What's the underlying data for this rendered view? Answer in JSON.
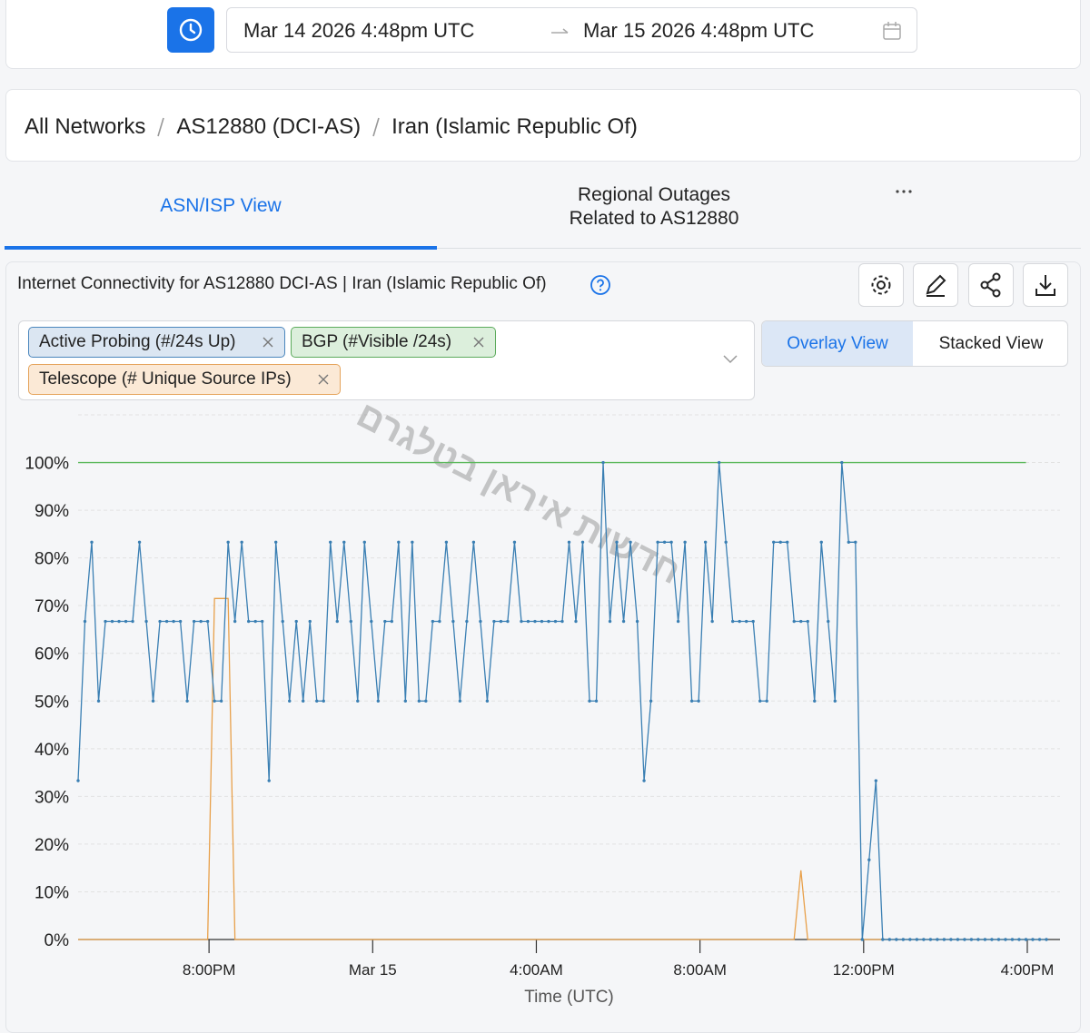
{
  "date_range": {
    "start": "Mar 14 2026 4:48pm UTC",
    "end": "Mar 15 2026 4:48pm UTC"
  },
  "breadcrumb": [
    "All Networks",
    "AS12880 (DCI-AS)",
    "Iran (Islamic Republic Of)"
  ],
  "tabs": [
    "ASN/ISP View",
    "Regional Outages Related to AS12880"
  ],
  "chart_title": "Internet Connectivity for AS12880 DCI-AS | Iran (Islamic Republic Of)",
  "view_toggle": [
    "Overlay View",
    "Stacked View"
  ],
  "watermark": "חדשות איראן בטלגרם",
  "chart_data": {
    "type": "line",
    "xlabel": "Time (UTC)",
    "grid": true,
    "xlim": [
      1008,
      2448
    ],
    "xticks": [
      {
        "value": 1200,
        "label": "8:00PM"
      },
      {
        "value": 1440,
        "label": "Mar 15"
      },
      {
        "value": 1680,
        "label": "4:00AM"
      },
      {
        "value": 1920,
        "label": "8:00AM"
      },
      {
        "value": 2160,
        "label": "12:00PM"
      },
      {
        "value": 2400,
        "label": "4:00PM"
      }
    ],
    "ylim": [
      0,
      110
    ],
    "yticks": [
      {
        "value": 0,
        "label": "0%"
      },
      {
        "value": 10,
        "label": "10%"
      },
      {
        "value": 20,
        "label": "20%"
      },
      {
        "value": 30,
        "label": "30%"
      },
      {
        "value": 40,
        "label": "40%"
      },
      {
        "value": 50,
        "label": "50%"
      },
      {
        "value": 60,
        "label": "60%"
      },
      {
        "value": 70,
        "label": "70%"
      },
      {
        "value": 80,
        "label": "80%"
      },
      {
        "value": 90,
        "label": "90%"
      },
      {
        "value": 100,
        "label": "100%"
      }
    ],
    "x": [
      1008,
      1018,
      1028,
      1038,
      1048,
      1058,
      1068,
      1078,
      1088,
      1098,
      1108,
      1118,
      1128,
      1138,
      1148,
      1158,
      1168,
      1178,
      1188,
      1198,
      1208,
      1218,
      1228,
      1238,
      1248,
      1258,
      1268,
      1278,
      1288,
      1298,
      1308,
      1318,
      1328,
      1338,
      1348,
      1358,
      1368,
      1378,
      1388,
      1398,
      1408,
      1418,
      1428,
      1438,
      1448,
      1458,
      1468,
      1478,
      1488,
      1498,
      1508,
      1518,
      1528,
      1538,
      1548,
      1558,
      1568,
      1578,
      1588,
      1598,
      1608,
      1618,
      1628,
      1638,
      1648,
      1658,
      1668,
      1678,
      1688,
      1698,
      1708,
      1718,
      1728,
      1738,
      1748,
      1758,
      1768,
      1778,
      1788,
      1798,
      1808,
      1818,
      1828,
      1838,
      1848,
      1858,
      1868,
      1878,
      1888,
      1898,
      1908,
      1918,
      1928,
      1938,
      1948,
      1958,
      1968,
      1978,
      1988,
      1998,
      2008,
      2018,
      2028,
      2038,
      2048,
      2058,
      2068,
      2078,
      2088,
      2098,
      2108,
      2118,
      2128,
      2138,
      2148,
      2158,
      2168,
      2178,
      2188,
      2198,
      2208,
      2218,
      2228,
      2238,
      2248,
      2258,
      2268,
      2278,
      2288,
      2298,
      2308,
      2318,
      2328,
      2338,
      2348,
      2358,
      2368,
      2378,
      2388,
      2398,
      2408,
      2418,
      2428
    ],
    "series": [
      {
        "name": "Active Probing (#/24s Up)",
        "color": "#3a7fb3",
        "values": [
          33.3,
          66.7,
          83.3,
          50,
          66.7,
          66.7,
          66.7,
          66.7,
          66.7,
          83.3,
          66.7,
          50,
          66.7,
          66.7,
          66.7,
          66.7,
          50,
          66.7,
          66.7,
          66.7,
          50,
          50,
          83.3,
          66.7,
          83.3,
          66.7,
          66.7,
          66.7,
          33.3,
          83.3,
          66.7,
          50,
          66.7,
          50,
          66.7,
          50,
          50,
          83.3,
          66.7,
          83.3,
          66.7,
          50,
          83.3,
          66.7,
          50,
          66.7,
          66.7,
          83.3,
          50,
          83.3,
          50,
          50,
          66.7,
          66.7,
          83.3,
          66.7,
          50,
          66.7,
          83.3,
          66.7,
          50,
          66.7,
          66.7,
          66.7,
          83.3,
          66.7,
          66.7,
          66.7,
          66.7,
          66.7,
          66.7,
          66.7,
          83.3,
          66.7,
          83.3,
          50,
          50,
          100,
          66.7,
          83.3,
          66.7,
          83.3,
          66.7,
          33.3,
          50,
          83.3,
          83.3,
          83.3,
          66.7,
          83.3,
          50,
          50,
          83.3,
          66.7,
          100,
          83.3,
          66.7,
          66.7,
          66.7,
          66.7,
          50,
          50,
          83.3,
          83.3,
          83.3,
          66.7,
          66.7,
          66.7,
          50,
          83.3,
          66.7,
          50,
          100,
          83.3,
          83.3,
          0,
          16.7,
          33.3,
          0,
          0,
          0,
          0,
          0,
          0,
          0,
          0,
          0,
          0,
          0,
          0,
          0,
          0,
          0,
          0,
          0,
          0,
          0,
          0,
          0,
          0,
          0,
          0,
          0
        ]
      },
      {
        "name": "BGP (#Visible /24s)",
        "color": "#5cb85c",
        "values": [
          100,
          100,
          100,
          100,
          100,
          100,
          100,
          100,
          100,
          100,
          100,
          100,
          100,
          100,
          100,
          100,
          100,
          100,
          100,
          100,
          100,
          100,
          100,
          100,
          100,
          100,
          100,
          100,
          100,
          100,
          100,
          100,
          100,
          100,
          100,
          100,
          100,
          100,
          100,
          100,
          100,
          100,
          100,
          100,
          100,
          100,
          100,
          100,
          100,
          100,
          100,
          100,
          100,
          100,
          100,
          100,
          100,
          100,
          100,
          100,
          100,
          100,
          100,
          100,
          100,
          100,
          100,
          100,
          100,
          100,
          100,
          100,
          100,
          100,
          100,
          100,
          100,
          100,
          100,
          100,
          100,
          100,
          100,
          100,
          100,
          100,
          100,
          100,
          100,
          100,
          100,
          100,
          100,
          100,
          100,
          100,
          100,
          100,
          100,
          100,
          100,
          100,
          100,
          100,
          100,
          100,
          100,
          100,
          100,
          100,
          100,
          100,
          100,
          100,
          100,
          100,
          100,
          100,
          100,
          100,
          100,
          100,
          100,
          100,
          100,
          100,
          100,
          100,
          100,
          100,
          100,
          100,
          100,
          100,
          100,
          100,
          100,
          100,
          100,
          100,
          null,
          null,
          null
        ]
      },
      {
        "name": "Telescope (# Unique Source IPs)",
        "color": "#e8a04a",
        "values": [
          0,
          0,
          0,
          0,
          0,
          0,
          0,
          0,
          0,
          0,
          0,
          0,
          0,
          0,
          0,
          0,
          0,
          0,
          0,
          0,
          71.5,
          71.5,
          71.5,
          0,
          0,
          0,
          0,
          0,
          0,
          0,
          0,
          0,
          0,
          0,
          0,
          0,
          0,
          0,
          0,
          0,
          0,
          0,
          0,
          0,
          0,
          0,
          0,
          0,
          0,
          0,
          0,
          0,
          0,
          0,
          0,
          0,
          0,
          0,
          0,
          0,
          0,
          0,
          0,
          0,
          0,
          0,
          0,
          0,
          0,
          0,
          0,
          0,
          0,
          0,
          0,
          0,
          0,
          0,
          0,
          0,
          0,
          0,
          0,
          0,
          0,
          0,
          0,
          0,
          0,
          0,
          0,
          0,
          0,
          0,
          0,
          0,
          0,
          0,
          0,
          0,
          0,
          0,
          0,
          0,
          0,
          0,
          14.5,
          0,
          0,
          0,
          0,
          0,
          0,
          0,
          0,
          0,
          0,
          0,
          0,
          0,
          0,
          0,
          0,
          0,
          0,
          0,
          0,
          0,
          0,
          0,
          0,
          0,
          0,
          0,
          0,
          0,
          0,
          0,
          0,
          0,
          0,
          0,
          0
        ]
      }
    ]
  }
}
